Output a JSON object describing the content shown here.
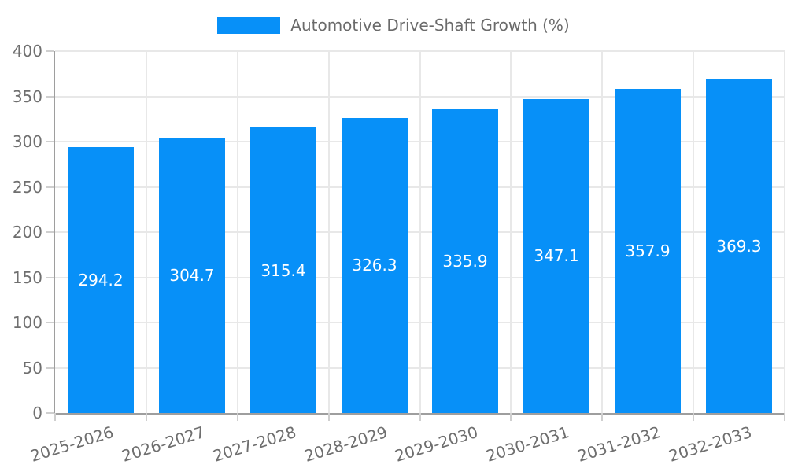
{
  "chart_data": {
    "type": "bar",
    "title": "Automotive Drive-Shaft Growth (%)",
    "categories": [
      "2025-2026",
      "2026-2027",
      "2027-2028",
      "2028-2029",
      "2029-2030",
      "2030-2031",
      "2031-2032",
      "2032-2033"
    ],
    "series": [
      {
        "name": "Automotive Drive-Shaft Growth (%)",
        "values": [
          294.2,
          304.7,
          315.4,
          326.3,
          335.9,
          347.1,
          357.9,
          369.3
        ]
      }
    ],
    "values": [
      294.2,
      304.7,
      315.4,
      326.3,
      335.9,
      347.1,
      357.9,
      369.3
    ],
    "value_labels": [
      "294.2",
      "304.7",
      "315.4",
      "326.3",
      "335.9",
      "347.1",
      "357.9",
      "369.3"
    ],
    "xlabel": "",
    "ylabel": "",
    "ylim": [
      0,
      400
    ],
    "ytick_step": 50,
    "yticks": [
      0,
      50,
      100,
      150,
      200,
      250,
      300,
      350,
      400
    ],
    "grid": true,
    "legend_position": "top",
    "x_label_rotation_deg": -17,
    "colors": {
      "bar": "#0790F8",
      "grid": "#e8e8e8",
      "axis": "#9e9e9e",
      "tick": "#cfcfcf",
      "tick_label": "#6f6f6f",
      "value_label": "#ffffff",
      "legend_text": "#6a6a6a"
    }
  }
}
